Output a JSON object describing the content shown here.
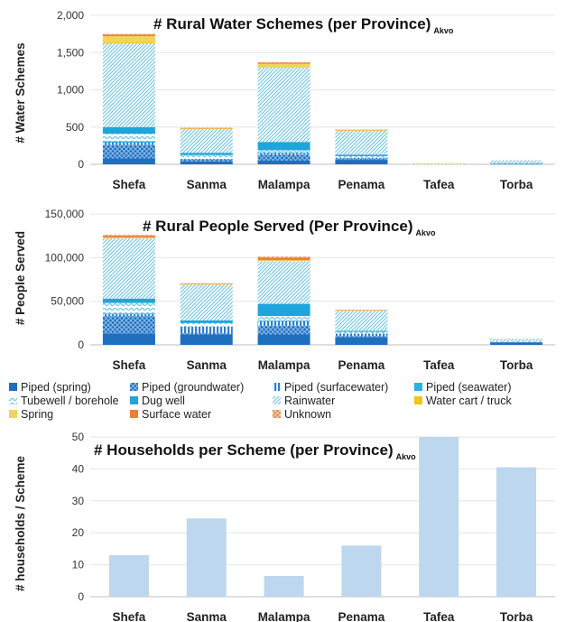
{
  "styles": [
    {
      "key": "piped_spring",
      "label": "Piped (spring)",
      "color": "#1f6fc0",
      "pattern": "solid"
    },
    {
      "key": "piped_groundwater",
      "label": "Piped (groundwater)",
      "color": "#2a7fd0",
      "pattern": "cross"
    },
    {
      "key": "piped_surfacewater",
      "label": "Piped (surfacewater)",
      "color": "#2a7fd0",
      "pattern": "vlines"
    },
    {
      "key": "piped_seawater",
      "label": "Piped (seawater)",
      "color": "#2fb0e6",
      "pattern": "solid"
    },
    {
      "key": "tubewell",
      "label": "Tubewell / borehole",
      "color": "#7fcfe8",
      "pattern": "waves"
    },
    {
      "key": "dug_well",
      "label": "Dug well",
      "color": "#1ea5dc",
      "pattern": "solid"
    },
    {
      "key": "rainwater",
      "label": "Rainwater",
      "color": "#8ed2e8",
      "pattern": "diag"
    },
    {
      "key": "water_cart",
      "label": "Water cart / truck",
      "color": "#f3c319",
      "pattern": "solid"
    },
    {
      "key": "spring",
      "label": "Spring",
      "color": "#f3d45a",
      "pattern": "solid"
    },
    {
      "key": "surface_water",
      "label": "Surface water",
      "color": "#ee7f2d",
      "pattern": "solid"
    },
    {
      "key": "unknown",
      "label": "Unknown",
      "color": "#e48b4e",
      "pattern": "cross"
    }
  ],
  "chart_data": [
    {
      "type": "bar",
      "stacked": true,
      "title": "# Rural Water Schemes (per Province)",
      "title_subscript": "Akvo",
      "ylabel": "# Water Schemes",
      "xlabel": "",
      "ylim": [
        0,
        2000
      ],
      "yticks": [
        "0",
        "500",
        "1,000",
        "1,500",
        "2,000"
      ],
      "categories": [
        "Shefa",
        "Sanma",
        "Malampa",
        "Penama",
        "Tafea",
        "Torba"
      ],
      "series": [
        {
          "name": "Piped (spring)",
          "style": "piped_spring",
          "values": [
            80,
            40,
            50,
            60,
            0,
            5
          ]
        },
        {
          "name": "Piped (groundwater)",
          "style": "piped_groundwater",
          "values": [
            180,
            20,
            80,
            20,
            0,
            0
          ]
        },
        {
          "name": "Piped (surfacewater)",
          "style": "piped_surfacewater",
          "values": [
            30,
            10,
            20,
            10,
            0,
            0
          ]
        },
        {
          "name": "Piped (seawater)",
          "style": "piped_seawater",
          "values": [
            20,
            5,
            10,
            0,
            0,
            0
          ]
        },
        {
          "name": "Tubewell / borehole",
          "style": "tubewell",
          "values": [
            100,
            50,
            30,
            20,
            0,
            5
          ]
        },
        {
          "name": "Dug well",
          "style": "dug_well",
          "values": [
            90,
            30,
            110,
            20,
            0,
            5
          ]
        },
        {
          "name": "Rainwater",
          "style": "rainwater",
          "values": [
            1120,
            315,
            1000,
            320,
            10,
            40
          ]
        },
        {
          "name": "Water cart / truck",
          "style": "water_cart",
          "values": [
            10,
            0,
            5,
            0,
            0,
            0
          ]
        },
        {
          "name": "Spring",
          "style": "spring",
          "values": [
            90,
            15,
            45,
            10,
            5,
            0
          ]
        },
        {
          "name": "Surface water",
          "style": "surface_water",
          "values": [
            20,
            3,
            15,
            3,
            0,
            0
          ]
        },
        {
          "name": "Unknown",
          "style": "unknown",
          "values": [
            10,
            2,
            5,
            2,
            0,
            0
          ]
        }
      ]
    },
    {
      "type": "bar",
      "stacked": true,
      "title": "# Rural People Served (Per Province)",
      "title_subscript": "Akvo",
      "ylabel": "# People Served",
      "xlabel": "",
      "ylim": [
        0,
        150000
      ],
      "yticks": [
        "0",
        "50,000",
        "100,000",
        "150,000"
      ],
      "categories": [
        "Shefa",
        "Sanma",
        "Malampa",
        "Penama",
        "Tafea",
        "Torba"
      ],
      "series": [
        {
          "name": "Piped (spring)",
          "style": "piped_spring",
          "values": [
            13000,
            12000,
            12000,
            9000,
            0,
            3000
          ]
        },
        {
          "name": "Piped (groundwater)",
          "style": "piped_groundwater",
          "values": [
            20000,
            1000,
            10000,
            1000,
            0,
            0
          ]
        },
        {
          "name": "Piped (surfacewater)",
          "style": "piped_surfacewater",
          "values": [
            2000,
            8000,
            5000,
            3000,
            0,
            0
          ]
        },
        {
          "name": "Piped (seawater)",
          "style": "piped_seawater",
          "values": [
            1000,
            0,
            1000,
            0,
            0,
            0
          ]
        },
        {
          "name": "Tubewell / borehole",
          "style": "tubewell",
          "values": [
            12000,
            4000,
            5000,
            2000,
            0,
            1000
          ]
        },
        {
          "name": "Dug well",
          "style": "dug_well",
          "values": [
            5000,
            3000,
            14000,
            1000,
            0,
            0
          ]
        },
        {
          "name": "Rainwater",
          "style": "rainwater",
          "values": [
            69000,
            41000,
            49000,
            23000,
            0,
            3000
          ]
        },
        {
          "name": "Water cart / truck",
          "style": "water_cart",
          "values": [
            0,
            0,
            0,
            0,
            0,
            0
          ]
        },
        {
          "name": "Spring",
          "style": "spring",
          "values": [
            1000,
            1000,
            1000,
            500,
            0,
            0
          ]
        },
        {
          "name": "Surface water",
          "style": "surface_water",
          "values": [
            2000,
            500,
            3000,
            500,
            0,
            0
          ]
        },
        {
          "name": "Unknown",
          "style": "unknown",
          "values": [
            1000,
            0,
            1000,
            0,
            0,
            0
          ]
        }
      ]
    },
    {
      "type": "bar",
      "title": "# Households per Scheme (per Province)",
      "title_subscript": "Akvo",
      "ylabel": "# households / Scheme",
      "xlabel": "",
      "ylim": [
        0,
        50
      ],
      "yticks": [
        "0",
        "10",
        "20",
        "30",
        "40",
        "50"
      ],
      "categories": [
        "Shefa",
        "Sanma",
        "Malampa",
        "Penama",
        "Tafea",
        "Torba"
      ],
      "series": [
        {
          "name": "",
          "style": "households",
          "color": "#bdd7ee",
          "values": [
            13,
            24.5,
            6.5,
            16,
            50,
            40.5
          ]
        }
      ]
    }
  ]
}
